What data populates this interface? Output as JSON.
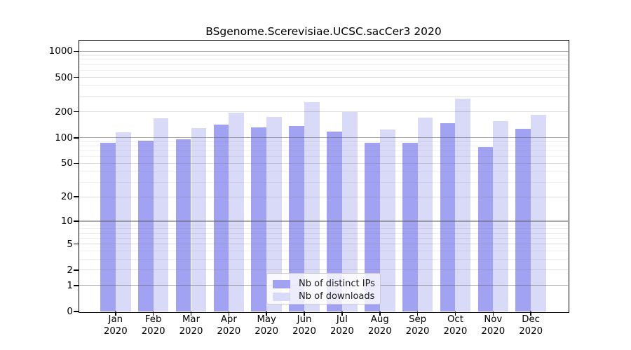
{
  "title": "BSgenome.Scerevisiae.UCSC.sacCer3 2020",
  "chart_data": {
    "type": "bar",
    "title": "BSgenome.Scerevisiae.UCSC.sacCer3 2020",
    "categories": [
      "Jan",
      "Feb",
      "Mar",
      "Apr",
      "May",
      "Jun",
      "Jul",
      "Aug",
      "Sep",
      "Oct",
      "Nov",
      "Dec"
    ],
    "category_year": "2020",
    "series": [
      {
        "name": "Nb of distinct IPs",
        "color": "#a2a2f2",
        "values": [
          88,
          93,
          96,
          142,
          132,
          136,
          117,
          87,
          87,
          147,
          78,
          126
        ]
      },
      {
        "name": "Nb of downloads",
        "color": "#d9d9f8",
        "values": [
          115,
          168,
          130,
          196,
          174,
          260,
          200,
          124,
          172,
          283,
          156,
          186
        ]
      }
    ],
    "yscale": "log1p",
    "ytick_values": [
      0,
      1,
      2,
      5,
      10,
      20,
      50,
      100,
      200,
      500,
      1000
    ],
    "ytick_labels": [
      "0",
      "1",
      "2",
      "5",
      "10",
      "20",
      "50",
      "100",
      "200",
      "500",
      "1000"
    ],
    "minor_tick_values": [
      3,
      4,
      6,
      7,
      8,
      9,
      30,
      40,
      60,
      70,
      80,
      90,
      300,
      400,
      600,
      700,
      800,
      900
    ],
    "ylim": [
      0,
      1330
    ],
    "grid": true,
    "legend_position": "lower-center"
  }
}
